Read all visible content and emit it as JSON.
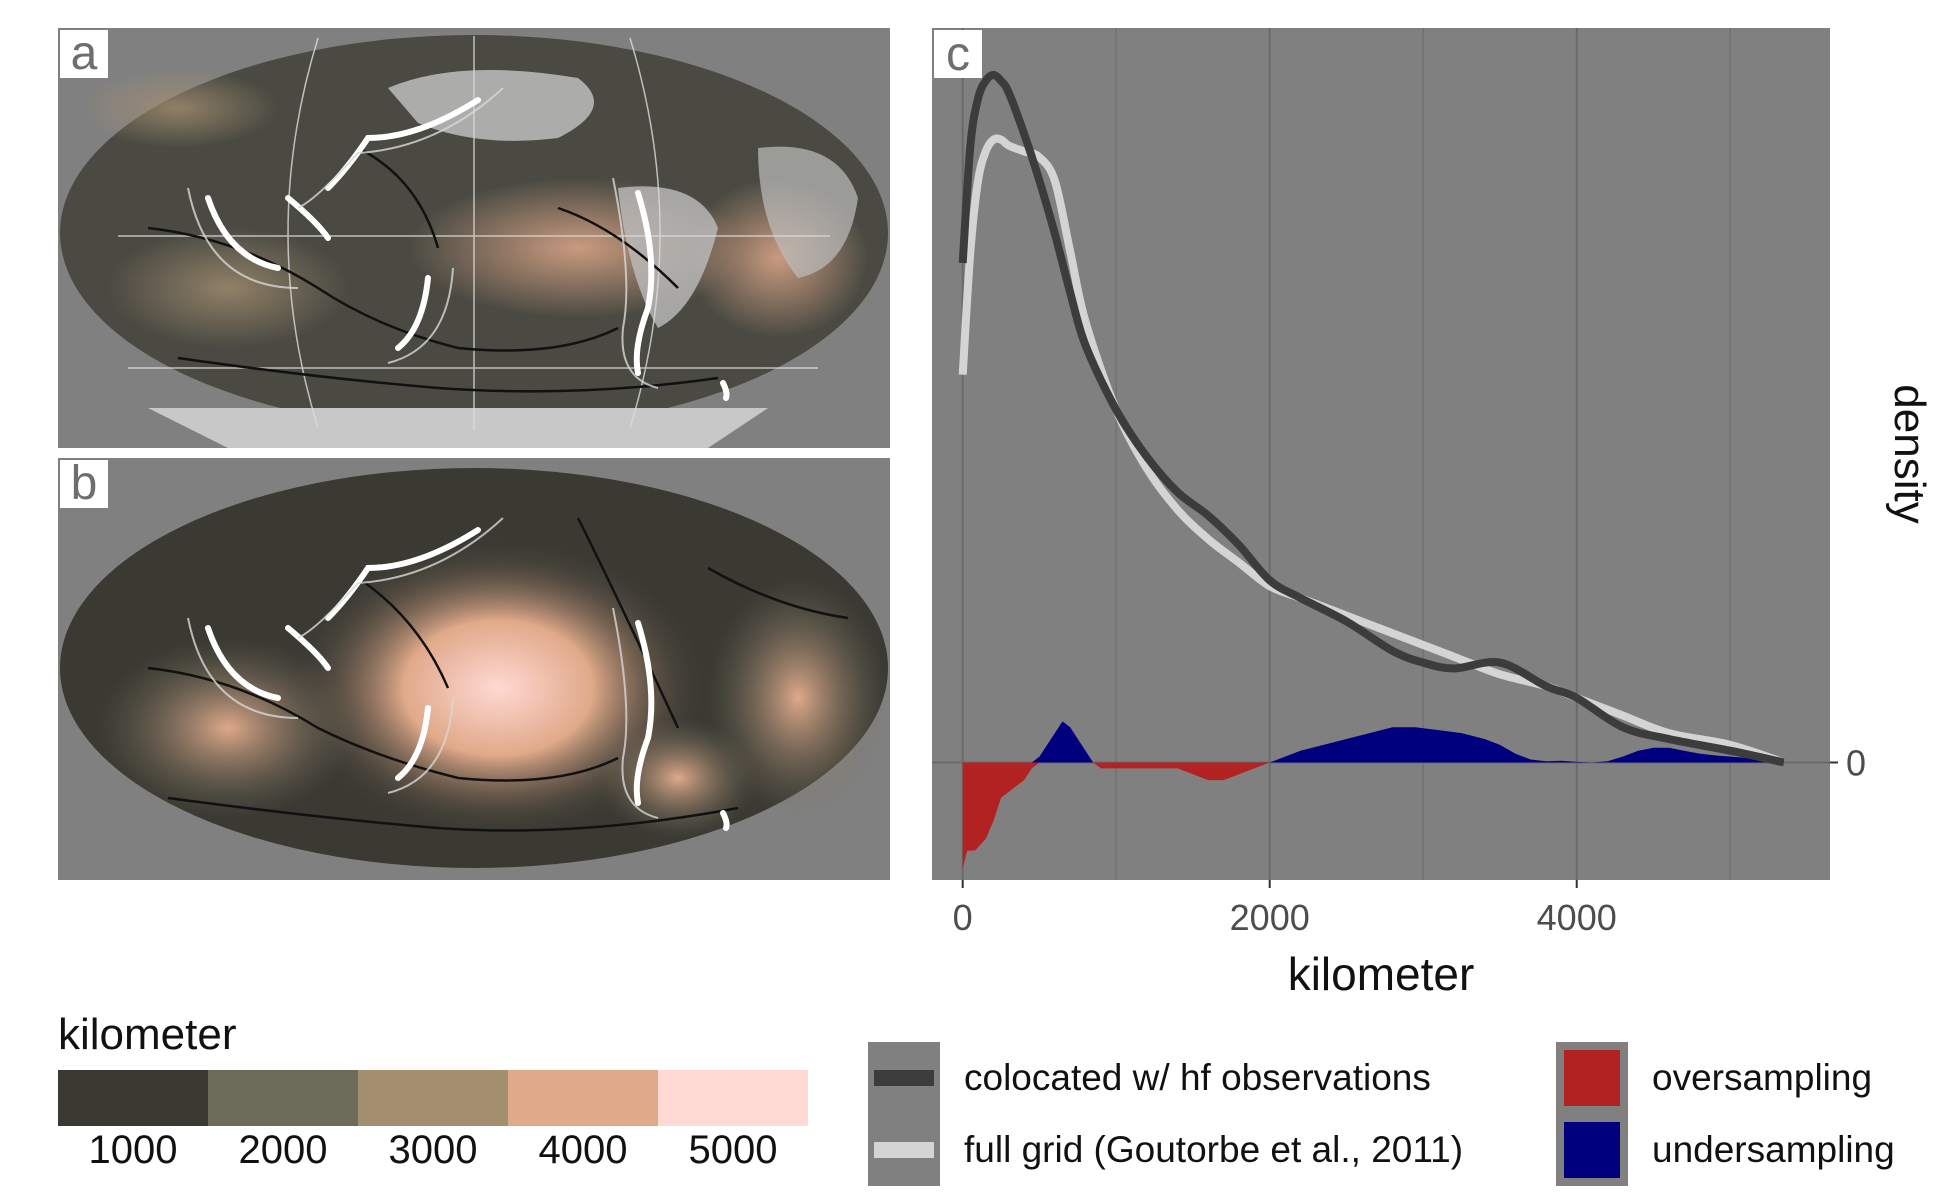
{
  "panels": {
    "a": "a",
    "b": "b",
    "c": "c"
  },
  "colorbar": {
    "title": "kilometer",
    "colors": [
      "#3a3a33",
      "#6d6c5b",
      "#a38e70",
      "#e0a98a",
      "#ffd9d3"
    ],
    "ticks": [
      "1000",
      "2000",
      "3000",
      "4000",
      "5000"
    ]
  },
  "legend_lines": {
    "items": [
      {
        "label": "colocated w/ hf observations",
        "color": "#3c3c3c"
      },
      {
        "label": "full grid (Goutorbe et al., 2011)",
        "color": "#d4d4d4"
      }
    ]
  },
  "legend_fills": {
    "items": [
      {
        "label": "oversampling",
        "color": "#b22222"
      },
      {
        "label": "undersampling",
        "color": "#00007f"
      }
    ]
  },
  "chart_data": {
    "type": "line",
    "xlabel": "kilometer",
    "ylabel": "density",
    "xlim": [
      -200,
      5650
    ],
    "ylim": [
      -0.2,
      1.25
    ],
    "x_ticks": [
      0,
      2000,
      4000
    ],
    "x_tick_labels": [
      "0",
      "2000",
      "4000"
    ],
    "y_ticks": [
      0
    ],
    "y_tick_labels": [
      "0"
    ],
    "grid": true,
    "series": [
      {
        "name": "colocated w/ hf observations",
        "color": "#3c3c3c",
        "x": [
          0,
          50,
          100,
          150,
          200,
          250,
          300,
          400,
          500,
          600,
          700,
          800,
          1000,
          1200,
          1400,
          1600,
          1800,
          2000,
          2200,
          2500,
          2800,
          3000,
          3200,
          3500,
          3800,
          4000,
          4300,
          4600,
          5000,
          5350
        ],
        "y": [
          0.85,
          1.05,
          1.13,
          1.16,
          1.17,
          1.16,
          1.14,
          1.07,
          0.99,
          0.9,
          0.8,
          0.71,
          0.6,
          0.52,
          0.46,
          0.42,
          0.37,
          0.31,
          0.28,
          0.24,
          0.19,
          0.17,
          0.16,
          0.17,
          0.13,
          0.11,
          0.06,
          0.04,
          0.02,
          0.0
        ]
      },
      {
        "name": "full grid (Goutorbe et al., 2011)",
        "color": "#d4d4d4",
        "x": [
          0,
          50,
          100,
          150,
          200,
          250,
          300,
          400,
          500,
          600,
          700,
          800,
          1000,
          1200,
          1400,
          1600,
          1800,
          2000,
          2200,
          2500,
          2800,
          3000,
          3200,
          3500,
          3800,
          4000,
          4300,
          4600,
          5000,
          5350
        ],
        "y": [
          0.66,
          0.87,
          0.99,
          1.04,
          1.06,
          1.06,
          1.05,
          1.04,
          1.03,
          0.99,
          0.87,
          0.75,
          0.6,
          0.5,
          0.43,
          0.38,
          0.34,
          0.3,
          0.28,
          0.25,
          0.22,
          0.2,
          0.18,
          0.15,
          0.13,
          0.11,
          0.08,
          0.05,
          0.03,
          0.0
        ]
      }
    ],
    "difference": {
      "x": [
        0,
        30,
        80,
        150,
        200,
        250,
        300,
        350,
        400,
        450,
        500,
        550,
        600,
        650,
        700,
        750,
        800,
        850,
        900,
        1000,
        1100,
        1200,
        1300,
        1400,
        1500,
        1600,
        1700,
        1800,
        1900,
        2000,
        2100,
        2200,
        2350,
        2500,
        2650,
        2800,
        2950,
        3100,
        3250,
        3400,
        3500,
        3600,
        3700,
        3800,
        3900,
        4000,
        4100,
        4200,
        4300,
        4400,
        4500,
        4600,
        4700,
        4800,
        4900,
        5000,
        5100,
        5200,
        5300,
        5350
      ],
      "y": [
        -0.18,
        -0.15,
        -0.15,
        -0.13,
        -0.1,
        -0.06,
        -0.05,
        -0.04,
        -0.03,
        -0.01,
        0.01,
        0.03,
        0.05,
        0.07,
        0.06,
        0.04,
        0.02,
        0.0,
        -0.01,
        -0.01,
        -0.01,
        -0.01,
        -0.01,
        -0.01,
        -0.02,
        -0.03,
        -0.03,
        -0.02,
        -0.01,
        0.0,
        0.01,
        0.02,
        0.03,
        0.04,
        0.05,
        0.06,
        0.06,
        0.055,
        0.05,
        0.04,
        0.03,
        0.015,
        0.005,
        0.002,
        0.003,
        0.001,
        0.0,
        0.002,
        0.01,
        0.02,
        0.025,
        0.025,
        0.02,
        0.015,
        0.012,
        0.01,
        0.008,
        0.005,
        0.002,
        0.0
      ],
      "positive_label": "undersampling",
      "negative_label": "oversampling"
    }
  }
}
